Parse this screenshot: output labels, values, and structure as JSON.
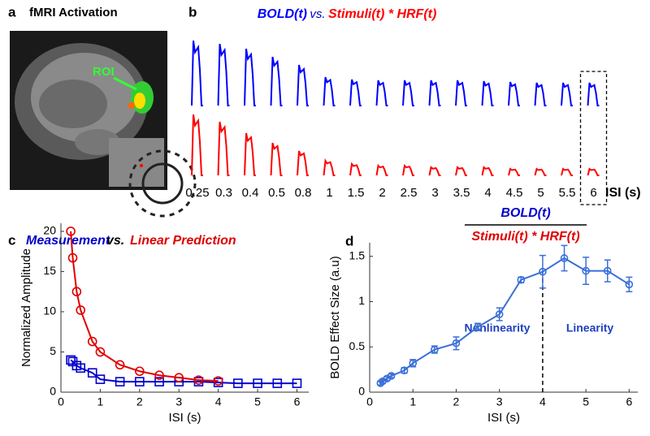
{
  "panel_a": {
    "letter": "a",
    "title": "fMRI Activation",
    "roi_label": "ROI"
  },
  "chart_data": [
    {
      "letter": "b",
      "type": "waveform",
      "vs_label": "vs.",
      "xlabel": "ISI (s)",
      "categories": [
        "0.25",
        "0.3",
        "0.4",
        "0.5",
        "0.8",
        "1",
        "1.5",
        "2",
        "2.5",
        "3",
        "3.5",
        "4",
        "4.5",
        "5",
        "5.5",
        "6"
      ],
      "highlight_index": 15,
      "series": [
        {
          "name": "BOLD(t)",
          "color": "#0000ff",
          "values": [
            80,
            76,
            70,
            60,
            50,
            35,
            32,
            31,
            31,
            31,
            31,
            30,
            29,
            28,
            28,
            28
          ]
        },
        {
          "name": "Stimuli(t) * HRF(t)",
          "color": "#ff0000",
          "values": [
            75,
            66,
            52,
            40,
            30,
            18,
            14,
            12,
            12,
            10,
            10,
            10,
            8,
            8,
            8,
            8
          ]
        }
      ]
    },
    {
      "letter": "c",
      "type": "line",
      "vs_label": "vs.",
      "xlabel": "ISI (s)",
      "ylabel": "Normalized Amplitude",
      "x": [
        0.25,
        0.3,
        0.4,
        0.5,
        0.8,
        1,
        1.5,
        2,
        2.5,
        3,
        3.5,
        4,
        4.5,
        5,
        5.5,
        6
      ],
      "xlim": [
        0,
        6.3
      ],
      "xticks": [
        0,
        1,
        2,
        3,
        4,
        5,
        6
      ],
      "ylim": [
        0,
        21
      ],
      "yticks": [
        0,
        5,
        10,
        15,
        20
      ],
      "series": [
        {
          "name": "Measurement",
          "color": "#0000cc",
          "marker": "square",
          "values": [
            4.0,
            3.8,
            3.3,
            3.0,
            2.4,
            1.6,
            1.3,
            1.3,
            1.3,
            1.3,
            1.3,
            1.2,
            1.1,
            1.1,
            1.1,
            1.1
          ]
        },
        {
          "name": "Linear Prediction",
          "color": "#e00000",
          "marker": "circle",
          "values": [
            20,
            16.7,
            12.5,
            10.2,
            6.3,
            5.0,
            3.4,
            2.6,
            2.1,
            1.8,
            1.5,
            1.4,
            null,
            null,
            null,
            null
          ]
        }
      ]
    },
    {
      "letter": "d",
      "type": "errorline",
      "xlabel": "ISI (s)",
      "ylabel": "BOLD Effect Size (a.u)",
      "title_numerator": "BOLD(t)",
      "title_denominator": "Stimuli(t) * HRF(t)",
      "x": [
        0.25,
        0.3,
        0.4,
        0.5,
        0.8,
        1,
        1.5,
        2,
        2.5,
        3,
        3.5,
        4,
        4.5,
        5,
        5.5,
        6
      ],
      "xlim": [
        0,
        6.2
      ],
      "xticks": [
        0,
        1,
        2,
        3,
        4,
        5,
        6
      ],
      "ylim": [
        0,
        1.65
      ],
      "yticks": [
        0,
        0.5,
        1,
        1.5
      ],
      "color": "#3a6fd8",
      "values": [
        0.1,
        0.12,
        0.15,
        0.18,
        0.24,
        0.32,
        0.47,
        0.54,
        0.72,
        0.86,
        1.24,
        1.33,
        1.48,
        1.34,
        1.34,
        1.19
      ],
      "errors": [
        0.02,
        0.02,
        0.02,
        0.02,
        0.03,
        0.04,
        0.04,
        0.07,
        0.04,
        0.07,
        0.03,
        0.18,
        0.14,
        0.15,
        0.12,
        0.08
      ],
      "divider_x": 4,
      "annotations": [
        "Nonlinearity",
        "Linearity"
      ]
    }
  ]
}
